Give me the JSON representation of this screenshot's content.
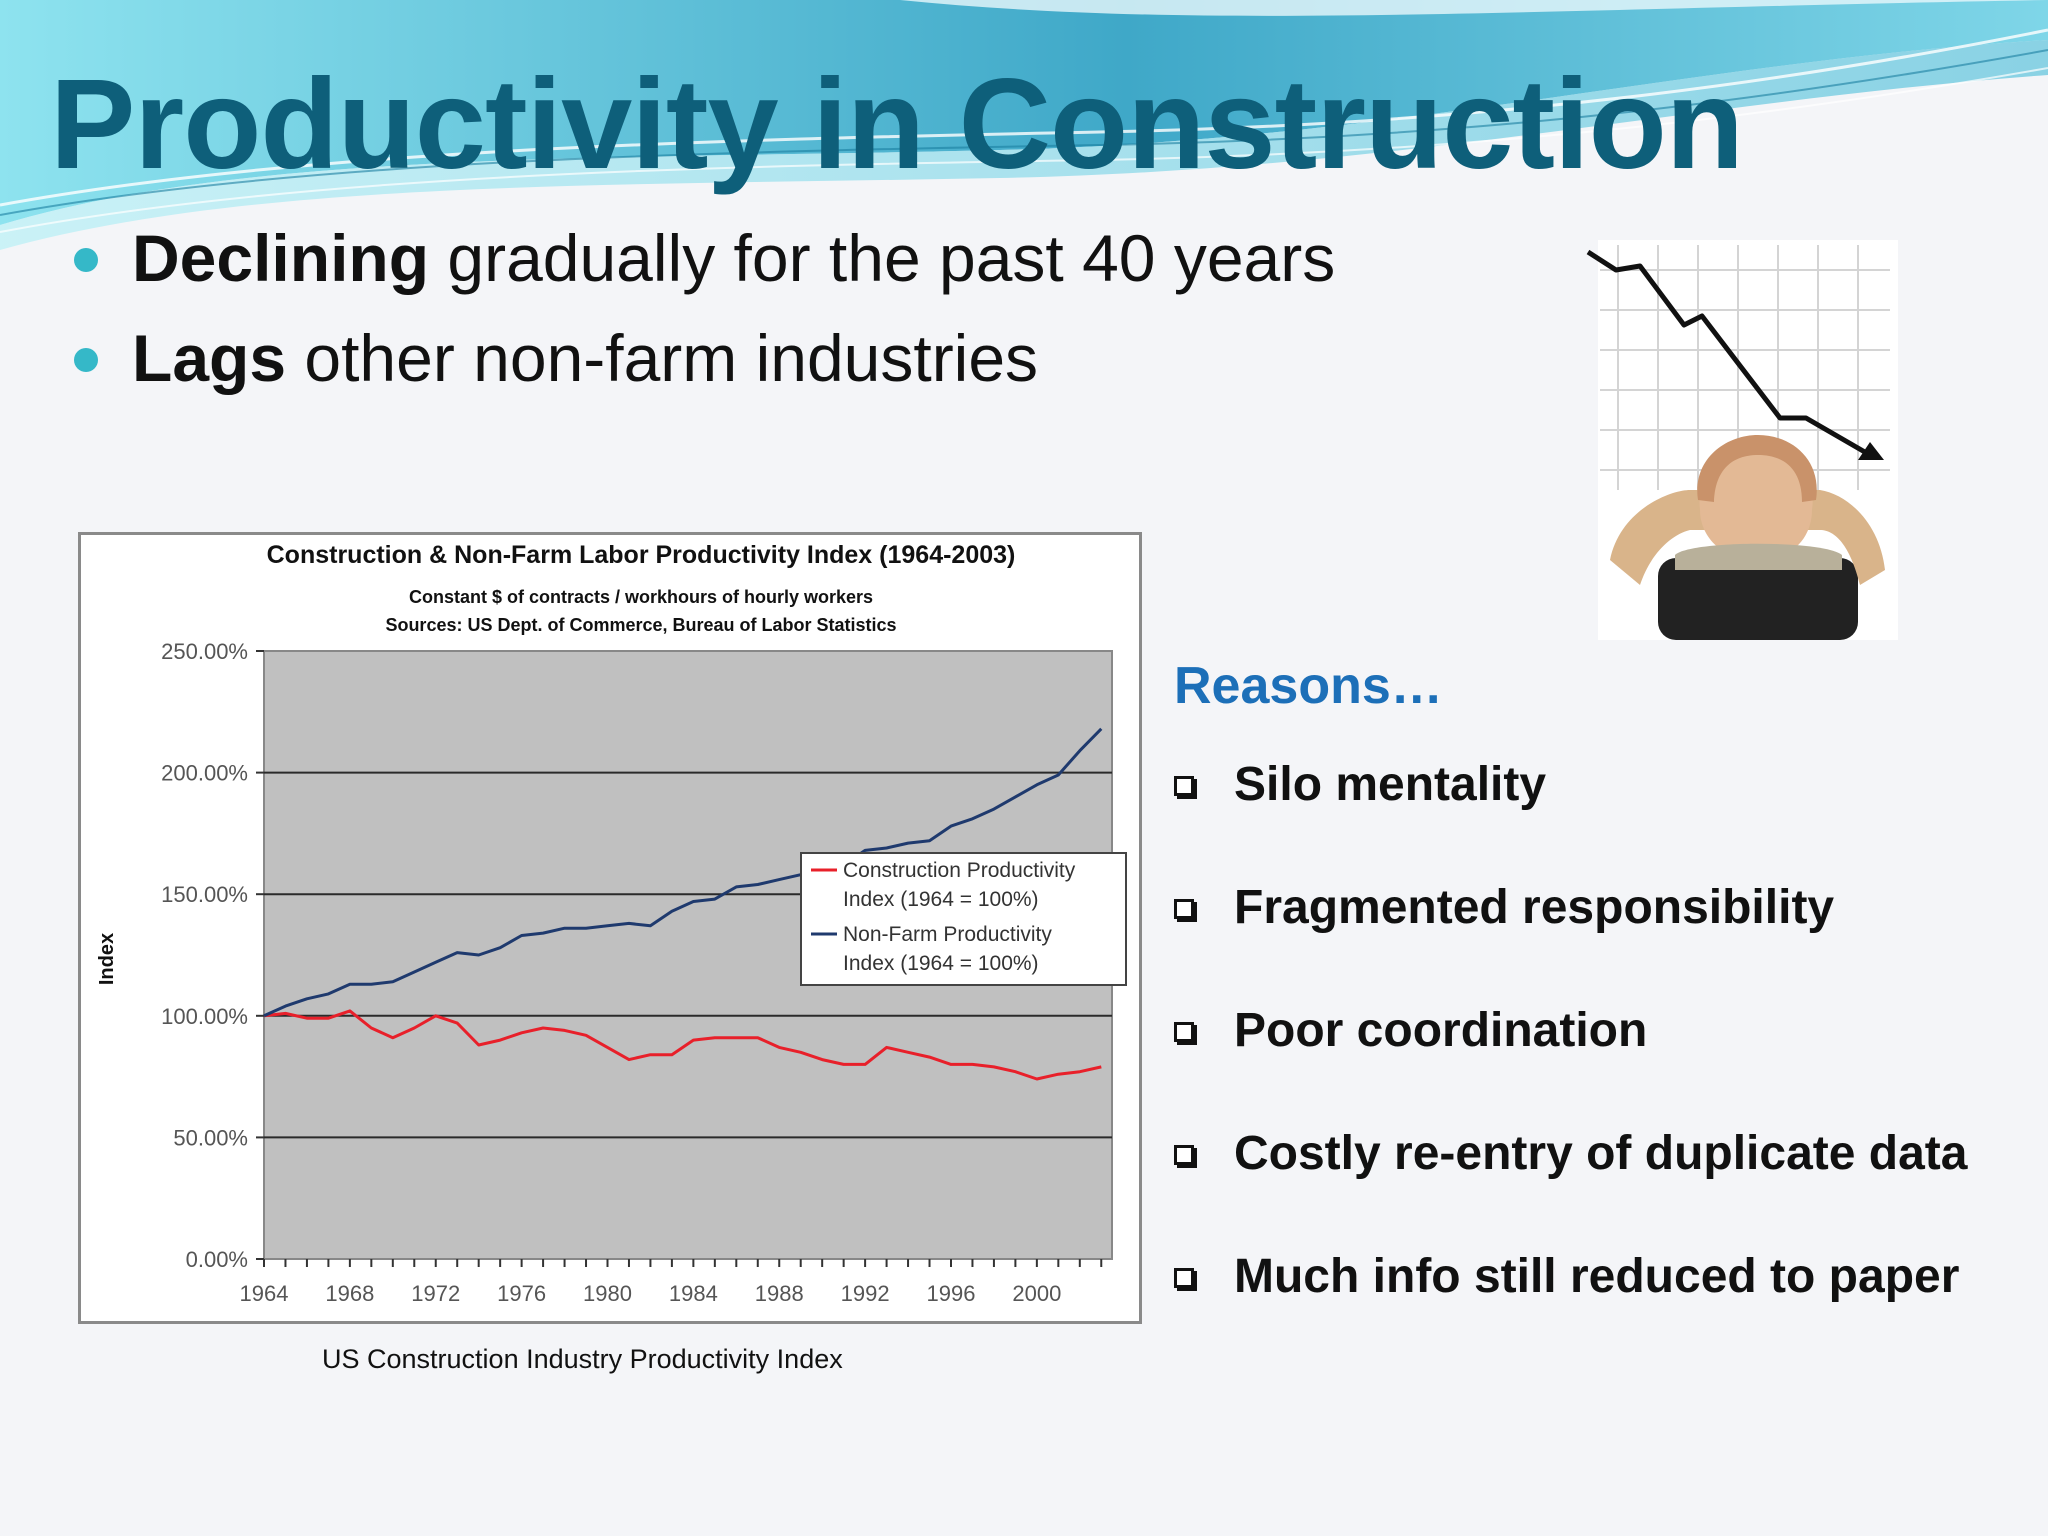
{
  "slide": {
    "title": "Productivity in Construction",
    "bullets": [
      {
        "bold": "Declining",
        "text": " gradually for the past 40 years"
      },
      {
        "bold": "Lags",
        "text": " other non-farm industries"
      }
    ]
  },
  "reasons": {
    "heading": "Reasons…",
    "items": [
      "Silo mentality",
      "Fragmented responsibility",
      "Poor coordination",
      "Costly re-entry of duplicate data",
      "Much info still reduced to paper"
    ]
  },
  "chart_caption": "US Construction Industry Productivity Index",
  "colors": {
    "title": "#0e5f7a",
    "bullet_dot": "#35b8c8",
    "reasons_heading": "#1c6fb8",
    "construction_series": "#e8202a",
    "nonfarm_series": "#1f3a6e",
    "plot_area": "#c0c0c0"
  },
  "chart_data": {
    "type": "line",
    "title": "Construction & Non-Farm Labor Productivity Index (1964-2003)",
    "subtitle": "Constant $ of contracts / workhours of hourly workers",
    "source": "Sources: US Dept. of Commerce, Bureau of Labor Statistics",
    "ylabel": "Index",
    "xlabel": "",
    "ylim": [
      0,
      250
    ],
    "xlim": [
      1964,
      2003
    ],
    "y_ticks": [
      0,
      50,
      100,
      150,
      200,
      250
    ],
    "y_tick_labels": [
      "0.00%",
      "50.00%",
      "100.00%",
      "150.00%",
      "200.00%",
      "250.00%"
    ],
    "x_tick_labels": [
      "1964",
      "1968",
      "1972",
      "1976",
      "1980",
      "1984",
      "1988",
      "1992",
      "1996",
      "2000"
    ],
    "grid": true,
    "legend_position": "right-middle",
    "x": [
      1964,
      1965,
      1966,
      1967,
      1968,
      1969,
      1970,
      1971,
      1972,
      1973,
      1974,
      1975,
      1976,
      1977,
      1978,
      1979,
      1980,
      1981,
      1982,
      1983,
      1984,
      1985,
      1986,
      1987,
      1988,
      1989,
      1990,
      1991,
      1992,
      1993,
      1994,
      1995,
      1996,
      1997,
      1998,
      1999,
      2000,
      2001,
      2002,
      2003
    ],
    "series": [
      {
        "name": "Construction Productivity Index (1964 = 100%)",
        "color": "#e8202a",
        "values": [
          100,
          101,
          99,
          99,
          102,
          95,
          91,
          95,
          100,
          97,
          88,
          90,
          93,
          95,
          94,
          92,
          87,
          82,
          84,
          84,
          90,
          91,
          91,
          91,
          87,
          85,
          82,
          80,
          80,
          87,
          85,
          83,
          80,
          80,
          79,
          77,
          74,
          76,
          77,
          79
        ]
      },
      {
        "name": "Non-Farm Productivity Index (1964 = 100%)",
        "color": "#1f3a6e",
        "values": [
          100,
          104,
          107,
          109,
          113,
          113,
          114,
          118,
          122,
          126,
          125,
          128,
          133,
          134,
          136,
          136,
          137,
          138,
          137,
          143,
          147,
          148,
          153,
          154,
          156,
          158,
          160,
          162,
          168,
          169,
          171,
          172,
          178,
          181,
          185,
          190,
          195,
          199,
          209,
          218
        ]
      }
    ]
  }
}
